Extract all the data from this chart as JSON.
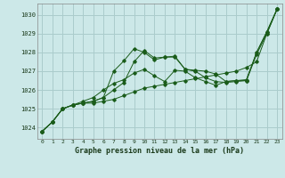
{
  "title": "Graphe pression niveau de la mer (hPa)",
  "bg_color": "#cce8e8",
  "grid_color": "#aacccc",
  "line_color": "#1a5c1a",
  "xlim": [
    -0.5,
    23.5
  ],
  "ylim": [
    1023.4,
    1030.6
  ],
  "yticks": [
    1024,
    1025,
    1026,
    1027,
    1028,
    1029,
    1030
  ],
  "xticks": [
    0,
    1,
    2,
    3,
    4,
    5,
    6,
    7,
    8,
    9,
    10,
    11,
    12,
    13,
    14,
    15,
    16,
    17,
    18,
    19,
    20,
    21,
    22,
    23
  ],
  "series": [
    [
      1023.8,
      1024.3,
      1025.0,
      1025.2,
      1025.3,
      1025.3,
      1025.4,
      1025.5,
      1025.7,
      1025.9,
      1026.1,
      1026.2,
      1026.3,
      1026.4,
      1026.5,
      1026.6,
      1026.7,
      1026.8,
      1026.9,
      1027.0,
      1027.2,
      1027.5,
      1029.0,
      1030.3
    ],
    [
      1023.8,
      1024.3,
      1025.0,
      1025.2,
      1025.3,
      1025.4,
      1025.6,
      1026.0,
      1026.4,
      1027.5,
      1028.1,
      1027.7,
      1027.75,
      1027.8,
      1027.1,
      1027.0,
      1026.65,
      1026.45,
      1026.4,
      1026.45,
      1026.5,
      1028.0,
      1029.1,
      1030.3
    ],
    [
      1023.8,
      1024.3,
      1025.0,
      1025.2,
      1025.3,
      1025.4,
      1025.6,
      1027.0,
      1027.55,
      1028.2,
      1028.0,
      1027.6,
      1027.75,
      1027.75,
      1027.1,
      1027.05,
      1027.0,
      1026.85,
      1026.45,
      1026.5,
      1026.55,
      1028.0,
      1029.1,
      1030.3
    ],
    [
      1023.8,
      1024.3,
      1025.0,
      1025.2,
      1025.4,
      1025.6,
      1026.0,
      1026.35,
      1026.55,
      1026.9,
      1027.1,
      1026.75,
      1026.45,
      1027.05,
      1027.0,
      1026.65,
      1026.45,
      1026.25,
      1026.45,
      1026.5,
      1026.5,
      1027.9,
      1029.0,
      1030.3
    ]
  ]
}
